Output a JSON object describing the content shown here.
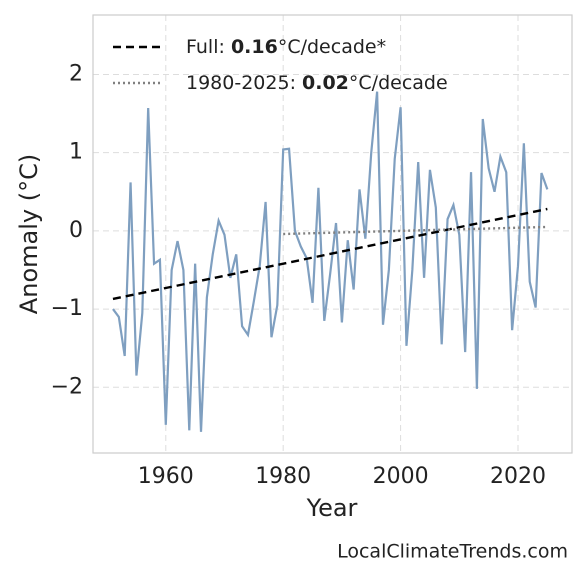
{
  "chart_data": {
    "type": "line",
    "x_label": "Year",
    "y_label": "Anomaly (°C)",
    "source": "LocalClimateTrends.com",
    "xlim": [
      1947.6,
      2029.2
    ],
    "xticks": [
      1960,
      1980,
      2000,
      2020
    ],
    "ylim": [
      -2.84,
      2.76
    ],
    "yticks": [
      {
        "value": -2,
        "label": "−2"
      },
      {
        "value": -1,
        "label": "−1"
      },
      0,
      1,
      2
    ],
    "grid": true,
    "legend": "upper left",
    "series": [
      {
        "color": "#7f9fc0",
        "style": "solid",
        "x": [
          1951,
          1952,
          1953,
          1954,
          1955,
          1956,
          1957,
          1958,
          1959,
          1960,
          1961,
          1962,
          1963,
          1964,
          1965,
          1966,
          1967,
          1968,
          1969,
          1970,
          1971,
          1972,
          1973,
          1974,
          1975,
          1976,
          1977,
          1978,
          1979,
          1980,
          1981,
          1982,
          1983,
          1984,
          1985,
          1986,
          1987,
          1988,
          1989,
          1990,
          1991,
          1992,
          1993,
          1994,
          1995,
          1996,
          1997,
          1998,
          1999,
          2000,
          2001,
          2002,
          2003,
          2004,
          2005,
          2006,
          2007,
          2008,
          2009,
          2010,
          2011,
          2012,
          2013,
          2014,
          2015,
          2016,
          2017,
          2018,
          2019,
          2020,
          2021,
          2022,
          2023,
          2024,
          2025
        ],
        "values": [
          -1.0,
          -1.1,
          -1.6,
          0.62,
          -1.85,
          -1.05,
          1.57,
          -0.42,
          -0.37,
          -2.48,
          -0.5,
          -0.13,
          -0.5,
          -2.55,
          -0.42,
          -2.57,
          -0.85,
          -0.3,
          0.13,
          -0.05,
          -0.6,
          -0.3,
          -1.22,
          -1.33,
          -0.9,
          -0.45,
          0.37,
          -1.36,
          -0.95,
          1.04,
          1.05,
          0.0,
          -0.2,
          -0.35,
          -0.92,
          0.55,
          -1.15,
          -0.55,
          0.1,
          -1.17,
          -0.12,
          -0.75,
          0.53,
          -0.1,
          1.0,
          1.78,
          -1.2,
          -0.5,
          0.92,
          1.58,
          -1.47,
          -0.5,
          0.88,
          -0.6,
          0.78,
          0.3,
          -1.45,
          0.15,
          0.33,
          -0.05,
          -1.55,
          0.75,
          -2.02,
          1.43,
          0.8,
          0.5,
          0.95,
          0.75,
          -1.27,
          -0.45,
          1.12,
          -0.65,
          -0.98,
          0.74,
          0.53
        ]
      },
      {
        "label": {
          "prefix": "Full: ",
          "rate": "0.16",
          "suffix": "°C/decade*"
        },
        "color": "#000000",
        "style": "dashed",
        "x": [
          1951,
          2025
        ],
        "values": [
          -0.87,
          0.28
        ]
      },
      {
        "label": {
          "prefix": "1980-2025: ",
          "rate": "0.02",
          "suffix": "°C/decade"
        },
        "color": "#808080",
        "style": "dotted",
        "x": [
          1980,
          2025
        ],
        "values": [
          -0.04,
          0.05
        ]
      }
    ]
  }
}
